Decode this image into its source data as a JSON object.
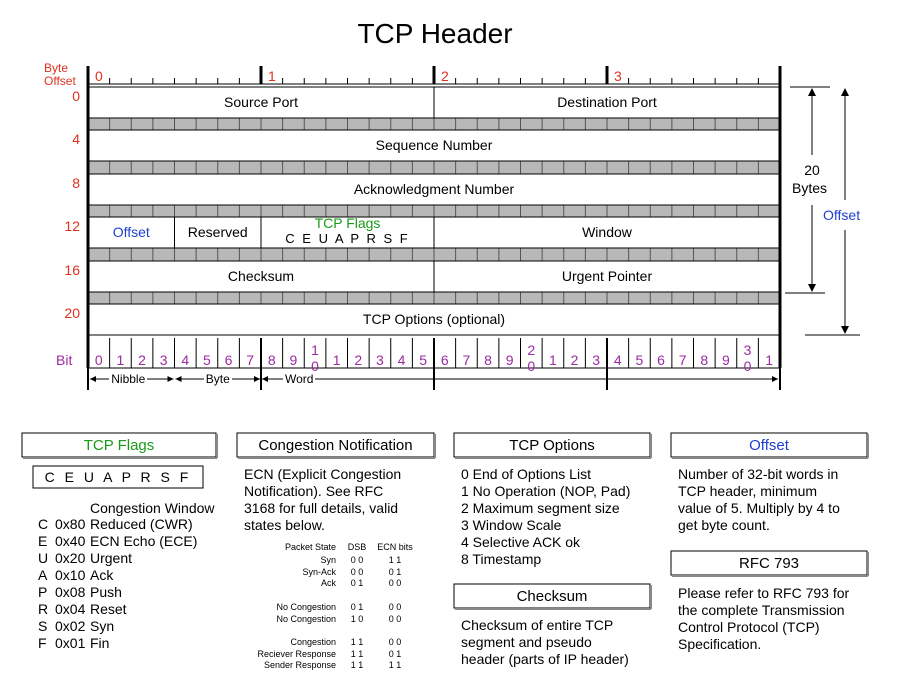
{
  "title": "TCP Header",
  "offset_header": [
    "Byte",
    "Offset"
  ],
  "byte_columns": [
    "0",
    "1",
    "2",
    "3"
  ],
  "rows": [
    {
      "offset": "0",
      "fields": [
        {
          "name": "source-port",
          "label": "Source Port"
        },
        {
          "name": "destination-port",
          "label": "Destination Port"
        }
      ]
    },
    {
      "offset": "4",
      "fields": [
        {
          "name": "sequence-number",
          "label": "Sequence Number"
        }
      ]
    },
    {
      "offset": "8",
      "fields": [
        {
          "name": "acknowledgment-number",
          "label": "Acknowledgment Number"
        }
      ]
    },
    {
      "offset": "12",
      "fields": [
        {
          "name": "offset",
          "label": "Offset"
        },
        {
          "name": "reserved",
          "label": "Reserved"
        },
        {
          "name": "tcp-flags",
          "label": "TCP Flags",
          "sub": "C  E  U  A  P  R  S  F"
        },
        {
          "name": "window",
          "label": "Window"
        }
      ]
    },
    {
      "offset": "16",
      "fields": [
        {
          "name": "checksum",
          "label": "Checksum"
        },
        {
          "name": "urgent-pointer",
          "label": "Urgent Pointer"
        }
      ]
    },
    {
      "offset": "20",
      "fields": [
        {
          "name": "tcp-options",
          "label": "TCP Options (optional)"
        }
      ]
    }
  ],
  "bit_label": "Bit",
  "bits": [
    "0",
    "1",
    "2",
    "3",
    "4",
    "5",
    "6",
    "7",
    "8",
    "9",
    "1|0",
    "1",
    "2",
    "3",
    "4",
    "5",
    "6",
    "7",
    "8",
    "9",
    "2|0",
    "1",
    "2",
    "3",
    "4",
    "5",
    "6",
    "7",
    "8",
    "9",
    "3|0",
    "1"
  ],
  "scale": {
    "nibble": "Nibble",
    "byte": "Byte",
    "word": "Word"
  },
  "right_annotations": {
    "twenty": "20",
    "bytes": "Bytes",
    "offset": "Offset"
  },
  "colors": {
    "red": "#e0301e",
    "purple": "#9b2ba0",
    "blue": "#1f3fd0",
    "green": "#1a9a1a",
    "band": "#b8b8b8"
  },
  "flags_box": {
    "title": "TCP Flags",
    "letters": "C  E  U  A  P  R  S  F",
    "heading": "Congestion Window",
    "items": [
      {
        "l": "C",
        "code": "0x80",
        "desc": "Reduced (CWR)"
      },
      {
        "l": "E",
        "code": "0x40",
        "desc": "ECN Echo (ECE)"
      },
      {
        "l": "U",
        "code": "0x20",
        "desc": "Urgent"
      },
      {
        "l": "A",
        "code": "0x10",
        "desc": "Ack"
      },
      {
        "l": "P",
        "code": "0x08",
        "desc": "Push"
      },
      {
        "l": "R",
        "code": "0x04",
        "desc": "Reset"
      },
      {
        "l": "S",
        "code": "0x02",
        "desc": "Syn"
      },
      {
        "l": "F",
        "code": "0x01",
        "desc": "Fin"
      }
    ]
  },
  "congestion_box": {
    "title": "Congestion Notification",
    "lines": [
      "ECN (Explicit Congestion",
      "Notification).  See RFC",
      "3168 for full details, valid",
      "states below."
    ],
    "table_header": [
      "Packet State",
      "DSB",
      "ECN bits"
    ],
    "table_rows": [
      [
        "Syn",
        "0 0",
        "1 1"
      ],
      [
        "Syn-Ack",
        "0 0",
        "0 1"
      ],
      [
        "Ack",
        "0 1",
        "0 0"
      ],
      [
        "",
        "",
        ""
      ],
      [
        "No Congestion",
        "0 1",
        "0 0"
      ],
      [
        "No Congestion",
        "1 0",
        "0 0"
      ],
      [
        "",
        "",
        ""
      ],
      [
        "Congestion",
        "1 1",
        "0 0"
      ],
      [
        "Reciever Response",
        "1 1",
        "0 1"
      ],
      [
        "Sender Response",
        "1 1",
        "1 1"
      ]
    ]
  },
  "options_box": {
    "title": "TCP Options",
    "lines": [
      "0 End of Options List",
      "1 No Operation (NOP, Pad)",
      "2 Maximum segment size",
      "3 Window Scale",
      "4 Selective ACK ok",
      "8 Timestamp"
    ]
  },
  "checksum_box": {
    "title": "Checksum",
    "lines": [
      "Checksum of entire TCP",
      "segment and pseudo",
      "header (parts of IP header)"
    ]
  },
  "offset_box": {
    "title": "Offset",
    "lines": [
      "Number of 32-bit words in",
      "TCP header, minimum",
      "value of 5.  Multiply by 4 to",
      "get byte count."
    ]
  },
  "rfc_box": {
    "title": "RFC 793",
    "lines": [
      "Please refer to RFC 793 for",
      "the complete Transmission",
      "Control Protocol (TCP)",
      "Specification."
    ]
  }
}
